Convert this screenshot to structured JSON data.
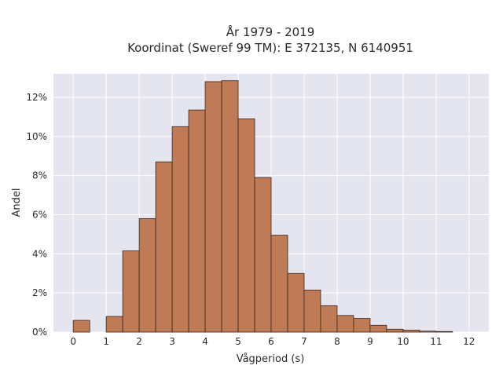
{
  "chart_data": {
    "type": "bar",
    "title_line1": "År 1979 - 2019",
    "title_line2": "Koordinat (Sweref 99 TM): E 372135, N 6140951",
    "xlabel": "Vågperiod (s)",
    "ylabel": "Andel",
    "xlim": [
      -0.6,
      12.6
    ],
    "ylim": [
      0,
      13.2
    ],
    "x_ticks": [
      0,
      1,
      2,
      3,
      4,
      5,
      6,
      7,
      8,
      9,
      10,
      11,
      12
    ],
    "y_ticks": [
      0,
      2,
      4,
      6,
      8,
      10,
      12
    ],
    "y_tick_suffix": "%",
    "bin_width": 0.5,
    "bins": [
      {
        "start": 0.0,
        "value": 0.6
      },
      {
        "start": 1.0,
        "value": 0.8
      },
      {
        "start": 1.5,
        "value": 4.15
      },
      {
        "start": 2.0,
        "value": 5.8
      },
      {
        "start": 2.5,
        "value": 8.7
      },
      {
        "start": 3.0,
        "value": 10.5
      },
      {
        "start": 3.5,
        "value": 11.35
      },
      {
        "start": 4.0,
        "value": 12.8
      },
      {
        "start": 4.5,
        "value": 12.85
      },
      {
        "start": 5.0,
        "value": 10.9
      },
      {
        "start": 5.5,
        "value": 7.9
      },
      {
        "start": 6.0,
        "value": 4.95
      },
      {
        "start": 6.5,
        "value": 3.0
      },
      {
        "start": 7.0,
        "value": 2.15
      },
      {
        "start": 7.5,
        "value": 1.35
      },
      {
        "start": 8.0,
        "value": 0.85
      },
      {
        "start": 8.5,
        "value": 0.7
      },
      {
        "start": 9.0,
        "value": 0.35
      },
      {
        "start": 9.5,
        "value": 0.15
      },
      {
        "start": 10.0,
        "value": 0.1
      },
      {
        "start": 10.5,
        "value": 0.05
      },
      {
        "start": 11.0,
        "value": 0.03
      }
    ],
    "grid": true,
    "colors": {
      "bar_fill": "#bf7b56",
      "bar_edge": "#3b2418",
      "plot_background": "#e5e5ef",
      "grid": "#ffffff"
    }
  }
}
